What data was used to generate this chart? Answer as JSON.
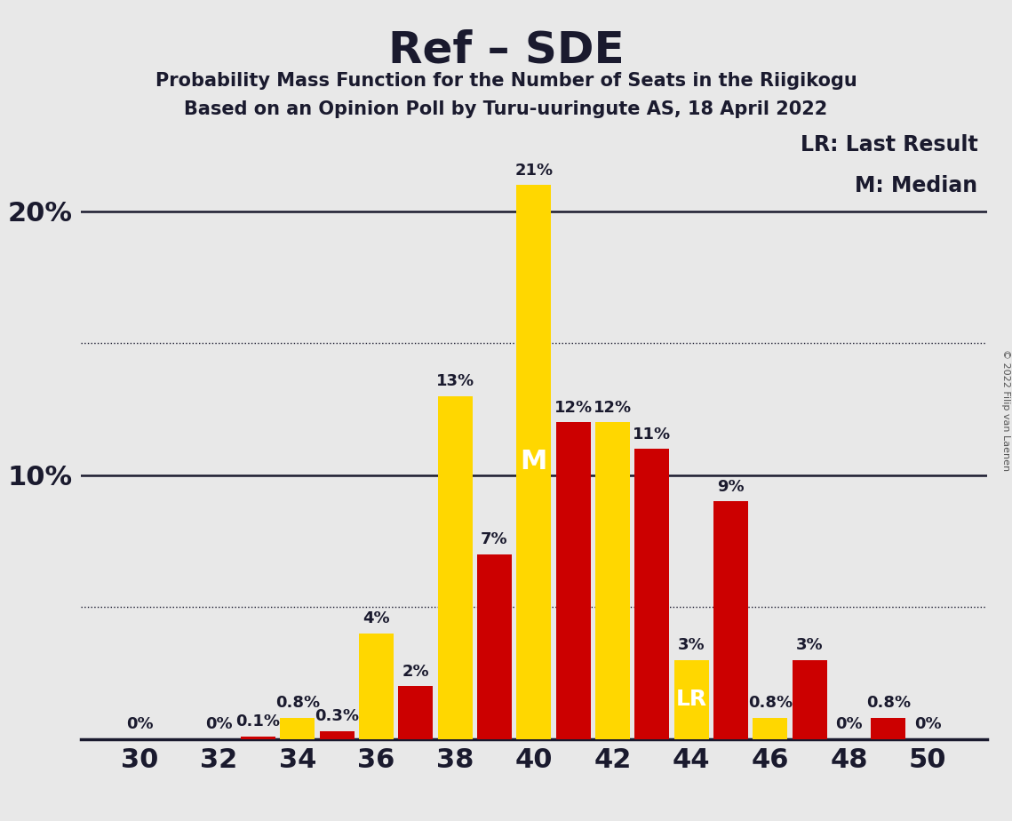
{
  "title": "Ref – SDE",
  "subtitle1": "Probability Mass Function for the Number of Seats in the Riigikogu",
  "subtitle2": "Based on an Opinion Poll by Turu-uuringute AS, 18 April 2022",
  "copyright": "© 2022 Filip van Laenen",
  "seats": [
    30,
    31,
    32,
    33,
    34,
    35,
    36,
    37,
    38,
    39,
    40,
    41,
    42,
    43,
    44,
    45,
    46,
    47,
    48,
    49,
    50
  ],
  "yellow_values": [
    0.0,
    0.0,
    0.0,
    0.0,
    0.8,
    0.0,
    4.0,
    0.0,
    13.0,
    0.0,
    21.0,
    0.0,
    12.0,
    0.0,
    3.0,
    0.0,
    0.8,
    0.0,
    0.0,
    0.0,
    0.0
  ],
  "red_values": [
    0.0,
    0.0,
    0.0,
    0.1,
    0.0,
    0.3,
    0.0,
    2.0,
    0.0,
    7.0,
    0.0,
    12.0,
    0.0,
    11.0,
    0.0,
    9.0,
    0.0,
    3.0,
    0.0,
    0.8,
    0.0
  ],
  "yellow_labels": {
    "34": "0.8%",
    "36": "4%",
    "38": "13%",
    "40": "21%",
    "42": "12%",
    "44": "3%",
    "46": "0.8%"
  },
  "red_labels": {
    "33": "0.1%",
    "35": "0.3%",
    "37": "2%",
    "39": "7%",
    "41": "12%",
    "43": "11%",
    "45": "9%",
    "47": "3%",
    "49": "0.8%"
  },
  "zero_label_seats": [
    30,
    32,
    48,
    50
  ],
  "yellow_color": "#FFD700",
  "red_color": "#CC0000",
  "background_color": "#E8E8E8",
  "median_seat": 40,
  "lr_seat": 44,
  "xlim_min": 28.5,
  "xlim_max": 51.5,
  "ylim_max": 23.5,
  "xticks": [
    30,
    32,
    34,
    36,
    38,
    40,
    42,
    44,
    46,
    48,
    50
  ],
  "ytick_positions": [
    10,
    20
  ],
  "ytick_labels": [
    "10%",
    "20%"
  ],
  "solid_hlines": [
    10,
    20
  ],
  "dotted_hlines": [
    5,
    15
  ],
  "bar_width": 0.88,
  "legend_lr": "LR: Last Result",
  "legend_m": "M: Median",
  "title_fontsize": 36,
  "subtitle_fontsize": 15,
  "tick_fontsize": 22,
  "label_fontsize": 13,
  "legend_fontsize": 17,
  "text_color": "#1a1a2e"
}
